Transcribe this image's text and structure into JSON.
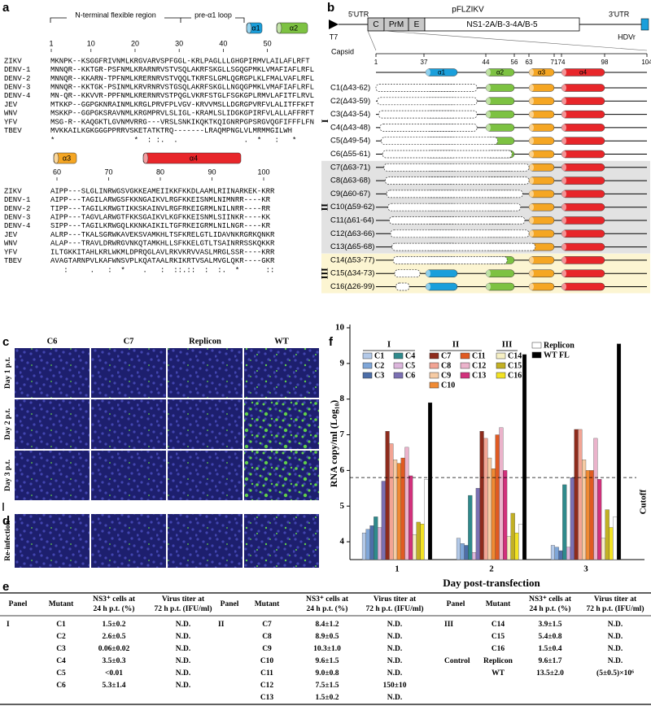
{
  "panel_labels": [
    "a",
    "b",
    "c",
    "d",
    "e",
    "f"
  ],
  "panel_a": {
    "regions": [
      "N-terminal flexible region",
      "pre-α1 loop"
    ],
    "names": [
      "ZIKV",
      "DENV-1",
      "DENV-2",
      "DENV-3",
      "DENV-4",
      "JEV",
      "WNV",
      "YFV",
      "TBEV"
    ],
    "block1": {
      "helices": [
        "α1",
        "α2"
      ],
      "ruler": [
        1,
        10,
        20,
        30,
        40,
        50
      ],
      "seqs": [
        "MKNPK--KSGGFRIVNMLKRGVARVSPFGGL-KRLPAGLLLGHGPIRMVLAILAFLRFT",
        "MNNQR--KKTGR-PSFNMLKRARNRVSTVSQLAKRFSKGLLSGQGPMKLVMAFIAFLRFL",
        "MNNQR--KKARN-TPFNMLKRERNRVSTVQQLTKRFSLGMLQGRGPLKLFMALVAFLRFL",
        "MNNQR--KKTGK-PSINMLKRVRNRVSTGSQLAKRFSKGLLNGQGPMKLVMAFIAFLRFL",
        "MN-QR--KKVVR-PPFNMLKRERNRVSTPQGLVKRFSTGLFSGKGPLRMVLAFITFLRVL",
        "MTKKP--GGPGKNRAINMLKRGLPRVFPLVGV-KRVVMSLLDGRGPVRFVLALITFFKFT",
        "MSKKP--GGPGKSRAVNMLKRGMPRVLSLIGL-KRAMLSLIDGKGPIRFVLALLAFFRFT",
        "MSG-R--KAQGKTLGVNMVRRG---VRSLSNKIKQKTKQIGNRPGPSRGVQGFIFFFLFN",
        "MVKKAILKGKGGGPPRRVSKETATKTRQ-------LRAQMPNGLVLMRMMGILWH"
      ],
      "conservation": "*                  *  : :.  .               .  *   :   *"
    },
    "block2": {
      "helices": [
        "α3",
        "α4"
      ],
      "ruler": [
        60,
        70,
        80,
        90,
        100
      ],
      "seqs": [
        "AIPP---SLGLINRWGSVGKKEAMEIIKKFKKDLAAMLRIINARKEK-KRR",
        "AIPP---TAGILARWGSFKKNGAIKVLRGFKKEISNMLNIMNRR----KR",
        "TIPP---TAGILKRWGTIKKSKAINVLRGFRKEIGRMLNILNRR----RR",
        "AIPP---TAGVLARWGTFKKSGAIKVLKGFKKEISNMLSIINKR----KK",
        "SIPP---TAGILKRWGQLKKNKAIKILTGFRKEIGRMLNILNGR----KR",
        "ALRP---TKALSGRWKAVEKSVAMKHLTSFKRELGTLIDAVNKRGRKQNKR",
        "ALAP---TRAVLDRWRGVNKQTAMKHLLSFKKELGTLTSAINRRSSKQKKR",
        "ILTGKKITAHLKRLWKMLDPRQGLAVLRKVKRVVASLMRGLSSR----KRR",
        "AVAGTARNPVLKAFWNSVPLKQATAALRKIKRTVSALMVGLQKR----GKR"
      ],
      "conservation": "   :     .   :  *    .   :  ::.::  :  :.  *      ::"
    }
  },
  "panel_b": {
    "vector": {
      "promoter": "T7",
      "utr5": "5'UTR",
      "genes": [
        "C",
        "PrM",
        "E",
        "NS1-2A/B-3-4A/B-5"
      ],
      "plasmid": "pFLZIKV",
      "utr3": "3'UTR",
      "ribozyme": "HDVr"
    },
    "capsid_label": "Capsid",
    "ruler": [
      1,
      37,
      44,
      56,
      63,
      71,
      74,
      98,
      104
    ],
    "helices": [
      "α1",
      "α2",
      "α3",
      "α4"
    ],
    "groups": [
      {
        "label": "I",
        "constructs": [
          "C1(Δ43-62)",
          "C2(Δ43-59)",
          "C3(Δ43-54)",
          "C4(Δ43-48)",
          "C5(Δ49-54)",
          "C6(Δ55-61)"
        ]
      },
      {
        "label": "II",
        "constructs": [
          "C7(Δ63-71)",
          "C8(Δ63-68)",
          "C9(Δ60-67)",
          "C10(Δ59-62)",
          "C11(Δ61-64)",
          "C12(Δ63-66)",
          "C13(Δ65-68)"
        ]
      },
      {
        "label": "III",
        "constructs": [
          "C14(Δ53-77)",
          "C15(Δ34-73)",
          "C16(Δ26-99)"
        ]
      }
    ]
  },
  "panel_c": {
    "columns": [
      "C6",
      "C7",
      "Replicon",
      "WT"
    ],
    "rows": [
      "Day 1 p.t.",
      "Day 2 p.t.",
      "Day 3 p.t."
    ]
  },
  "panel_d": {
    "row": "Re-infection"
  },
  "table": {
    "headers": {
      "panel": "Panel",
      "mutant": "Mutant",
      "ns3": [
        "NS3⁺ cells at",
        "24 h p.t. (%)"
      ],
      "titer": [
        "Virus titer at",
        "72 h p.t. (IFU/ml)"
      ]
    },
    "blocks": [
      {
        "panel": "I",
        "rows": [
          [
            "C1",
            "1.5±0.2",
            "N.D."
          ],
          [
            "C2",
            "2.6±0.5",
            "N.D."
          ],
          [
            "C3",
            "0.06±0.02",
            "N.D."
          ],
          [
            "C4",
            "3.5±0.3",
            "N.D."
          ],
          [
            "C5",
            "<0.01",
            "N.D."
          ],
          [
            "C6",
            "5.3±1.4",
            "N.D."
          ]
        ]
      },
      {
        "panel": "II",
        "rows": [
          [
            "C7",
            "8.4±1.2",
            "N.D."
          ],
          [
            "C8",
            "8.9±0.5",
            "N.D."
          ],
          [
            "C9",
            "10.3±1.0",
            "N.D."
          ],
          [
            "C10",
            "9.6±1.5",
            "N.D."
          ],
          [
            "C11",
            "9.0±0.8",
            "N.D."
          ],
          [
            "C12",
            "7.5±1.5",
            "150±10"
          ],
          [
            "C13",
            "1.5±0.2",
            "N.D."
          ]
        ]
      },
      {
        "panel": "III",
        "rows": [
          [
            "C14",
            "3.9±1.5",
            "N.D."
          ],
          [
            "C15",
            "5.4±0.8",
            "N.D."
          ],
          [
            "C16",
            "1.5±0.4",
            "N.D."
          ]
        ]
      },
      {
        "panel": "Control",
        "rows": [
          [
            "Replicon",
            "9.6±1.7",
            "N.D."
          ],
          [
            "WT",
            "13.5±2.0",
            "(5±0.5)×10⁶"
          ]
        ]
      }
    ]
  },
  "chart_data": {
    "type": "bar",
    "ylabel": "RNA copy/ml (Log₁₀)",
    "xlabel": "Day post-transfection",
    "categories": [
      "1",
      "2",
      "3"
    ],
    "ylim": [
      3.5,
      10
    ],
    "yticks": [
      4,
      5,
      6,
      7,
      8,
      9,
      10
    ],
    "cutoff": 5.8,
    "cutoff_label": "Cutoff",
    "series": [
      {
        "name": "C1",
        "group": "I",
        "color": "#b3c9e8",
        "values": [
          4.25,
          4.1,
          3.9
        ]
      },
      {
        "name": "C2",
        "group": "I",
        "color": "#7fa6d8",
        "values": [
          4.35,
          3.95,
          3.85
        ]
      },
      {
        "name": "C3",
        "group": "I",
        "color": "#4d6ea8",
        "values": [
          4.45,
          3.9,
          3.75
        ]
      },
      {
        "name": "C4",
        "group": "I",
        "color": "#2f8a8c",
        "values": [
          4.7,
          5.3,
          5.6
        ]
      },
      {
        "name": "C5",
        "group": "I",
        "color": "#dcb6dc",
        "values": [
          4.4,
          3.7,
          3.85
        ]
      },
      {
        "name": "C6",
        "group": "I",
        "color": "#7b70b3",
        "values": [
          5.7,
          5.5,
          5.8
        ]
      },
      {
        "name": "C7",
        "group": "II",
        "color": "#8e2b1c",
        "values": [
          7.1,
          7.1,
          7.15
        ]
      },
      {
        "name": "C8",
        "group": "II",
        "color": "#f2a494",
        "values": [
          6.75,
          6.9,
          7.15
        ]
      },
      {
        "name": "C9",
        "group": "II",
        "color": "#f6cba4",
        "values": [
          6.3,
          6.35,
          6.3
        ]
      },
      {
        "name": "C10",
        "group": "II",
        "color": "#f08a33",
        "values": [
          6.2,
          6.05,
          6.0
        ]
      },
      {
        "name": "C11",
        "group": "II",
        "color": "#e05a22",
        "values": [
          6.35,
          7.0,
          6.0
        ]
      },
      {
        "name": "C12",
        "group": "II",
        "color": "#ebb3cb",
        "values": [
          6.65,
          7.2,
          6.9
        ]
      },
      {
        "name": "C13",
        "group": "II",
        "color": "#d2317c",
        "values": [
          5.85,
          6.0,
          5.75
        ]
      },
      {
        "name": "C14",
        "group": "III",
        "color": "#f6f0c4",
        "values": [
          4.2,
          4.15,
          4.1
        ]
      },
      {
        "name": "C15",
        "group": "III",
        "color": "#c2b024",
        "values": [
          4.55,
          4.8,
          4.9
        ]
      },
      {
        "name": "C16",
        "group": "III",
        "color": "#f2e224",
        "values": [
          4.5,
          4.25,
          4.4
        ]
      },
      {
        "name": "Replicon",
        "color": "#ffffff",
        "values": [
          5.75,
          4.5,
          4.7
        ]
      },
      {
        "name": "WT FL",
        "color": "#000000",
        "values": [
          7.9,
          9.25,
          9.55
        ]
      }
    ]
  }
}
